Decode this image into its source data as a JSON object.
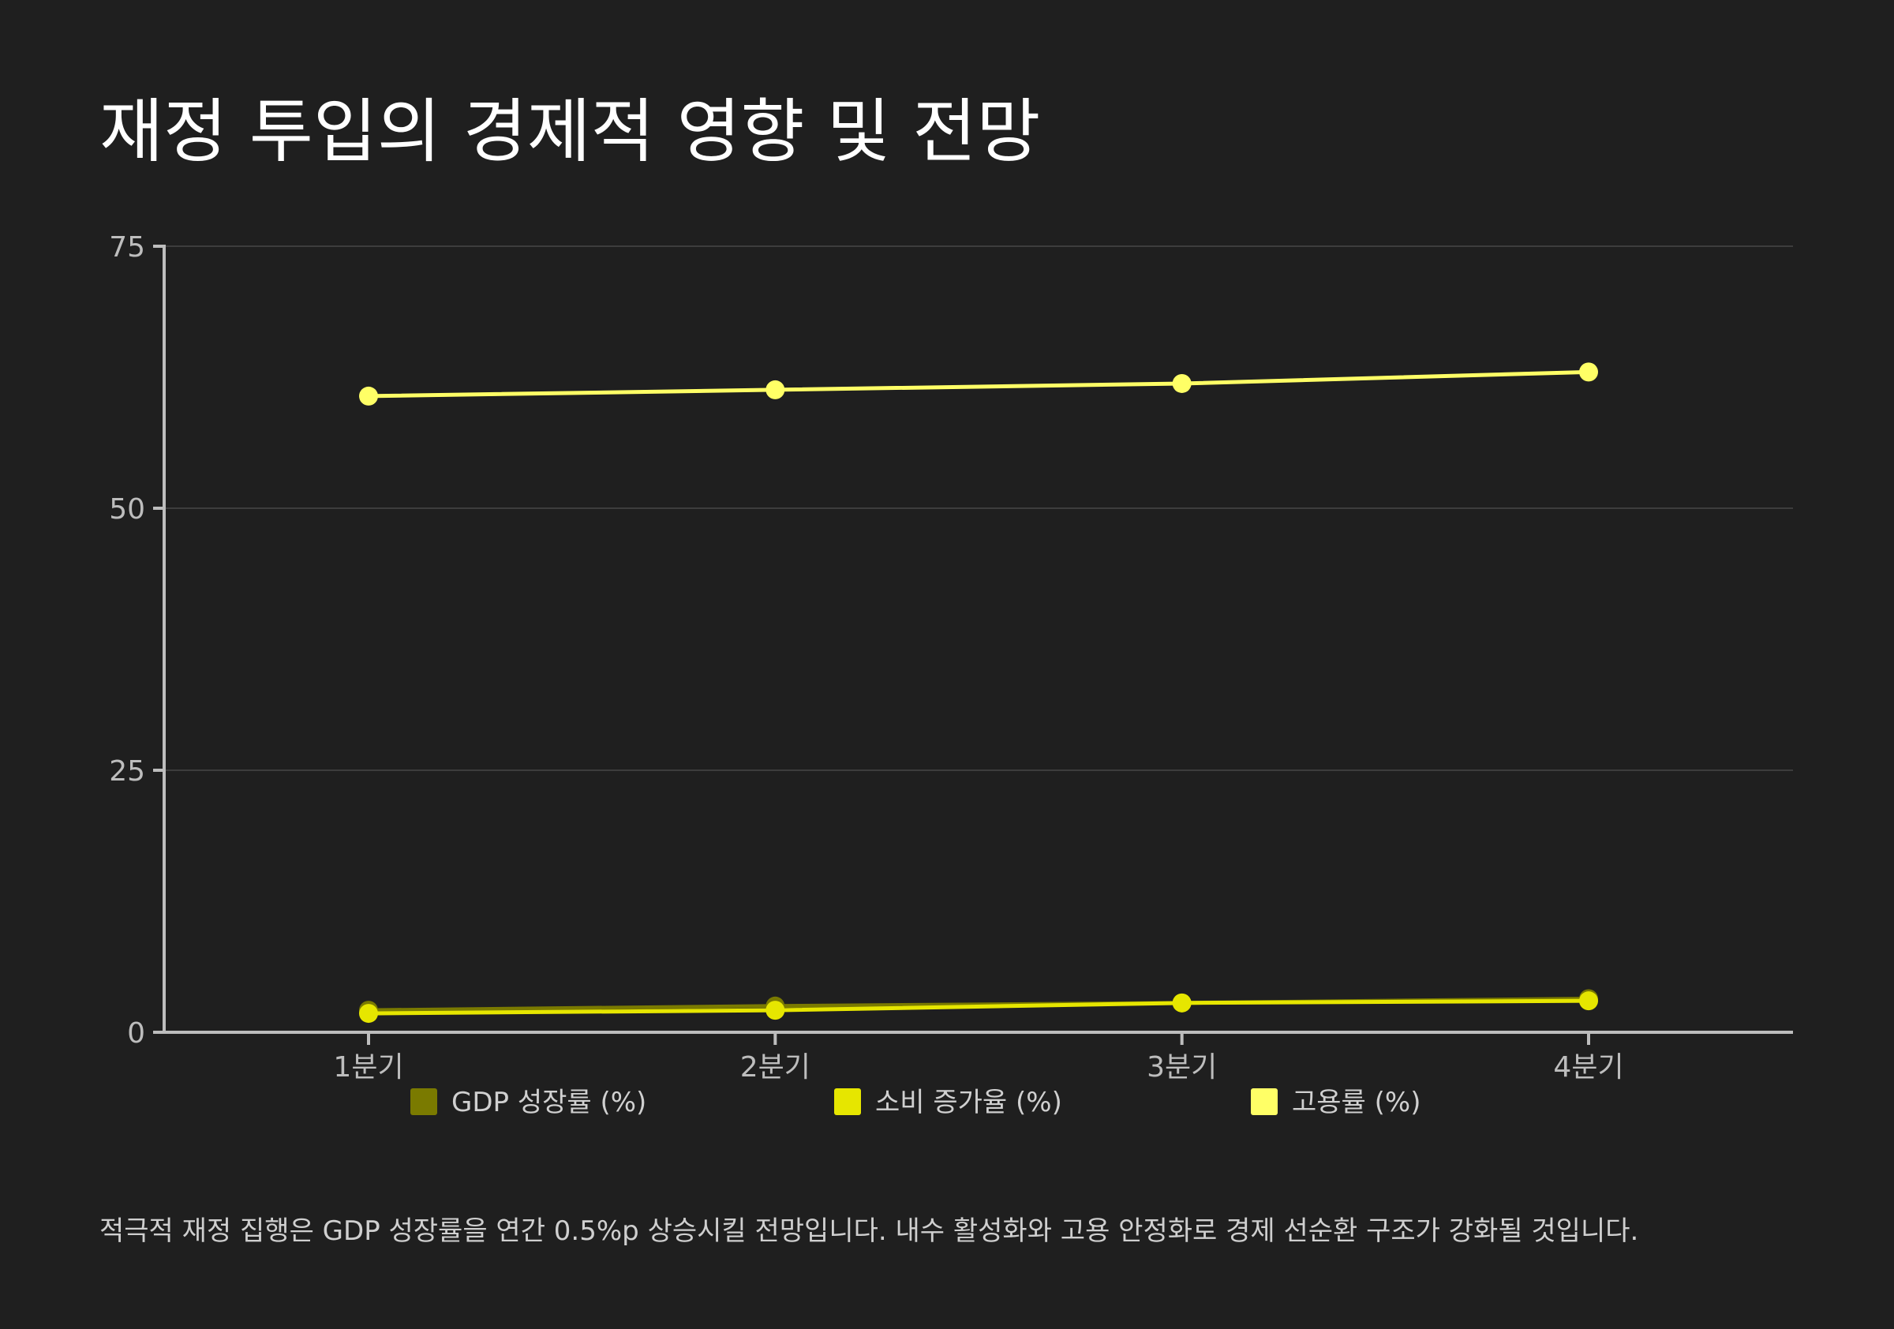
{
  "title": "재정 투입의 경제적 영향 및 전망",
  "footnote": "적극적 재정 집행은 GDP 성장률을 연간 0.5%p 상승시킬 전망입니다. 내수 활성화와 고용 안정화로 경제 선순환 구조가 강화될 것입니다.",
  "colors": {
    "background": "#1f1f1f",
    "axis": "#bdbdbd",
    "grid": "#3d3d3d"
  },
  "chart_data": {
    "type": "line",
    "categories": [
      "1분기",
      "2분기",
      "3분기",
      "4분기"
    ],
    "ylim": [
      0,
      75
    ],
    "yticks": [
      0,
      25,
      50,
      75
    ],
    "grid": true,
    "legend_position": "bottom",
    "series": [
      {
        "name": "GDP 성장률 (%)",
        "color": "#7a7a00",
        "values": [
          2.1,
          2.5,
          2.8,
          3.2
        ]
      },
      {
        "name": "소비 증가율 (%)",
        "color": "#e6e600",
        "values": [
          1.8,
          2.1,
          2.8,
          3.0
        ]
      },
      {
        "name": "고용률 (%)",
        "color": "#ffff66",
        "values": [
          60.7,
          61.3,
          61.9,
          63.0
        ]
      }
    ]
  }
}
